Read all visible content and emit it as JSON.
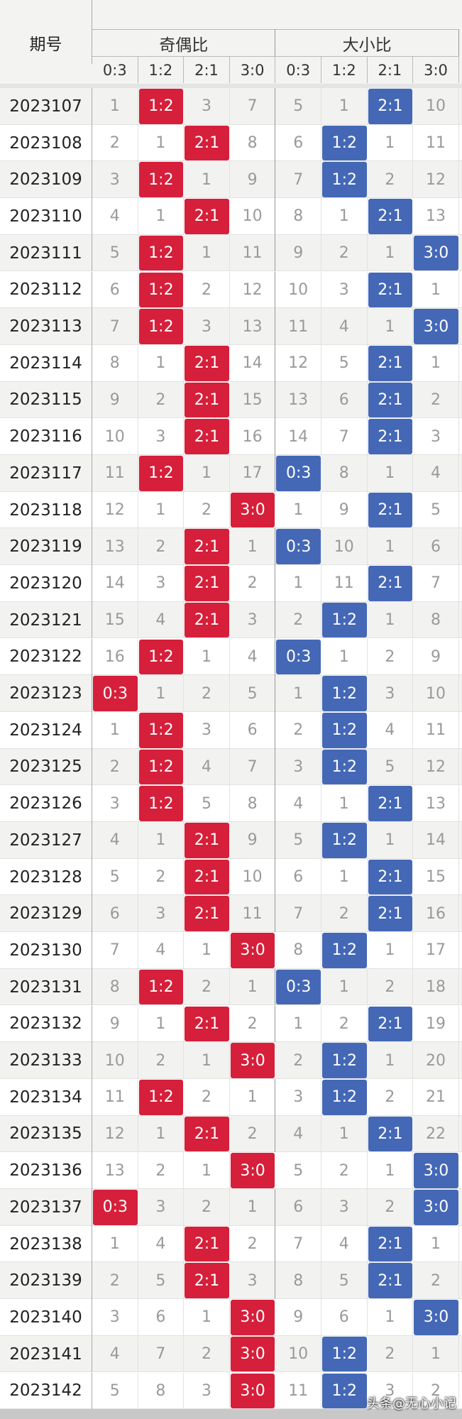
{
  "header": {
    "period_label": "期号",
    "groups": [
      {
        "title": "奇偶比",
        "columns": [
          "0:3",
          "1:2",
          "2:1",
          "3:0"
        ]
      },
      {
        "title": "大小比",
        "columns": [
          "0:3",
          "1:2",
          "2:1",
          "3:0"
        ]
      }
    ]
  },
  "rows": [
    {
      "period": "2023107",
      "cells": [
        1,
        "1:2",
        3,
        7,
        5,
        1,
        "2:1",
        10
      ]
    },
    {
      "period": "2023108",
      "cells": [
        2,
        1,
        "2:1",
        8,
        6,
        "1:2",
        1,
        11
      ]
    },
    {
      "period": "2023109",
      "cells": [
        3,
        "1:2",
        1,
        9,
        7,
        "1:2",
        2,
        12
      ]
    },
    {
      "period": "2023110",
      "cells": [
        4,
        1,
        "2:1",
        10,
        8,
        1,
        "2:1",
        13
      ]
    },
    {
      "period": "2023111",
      "cells": [
        5,
        "1:2",
        1,
        11,
        9,
        2,
        1,
        "3:0"
      ]
    },
    {
      "period": "2023112",
      "cells": [
        6,
        "1:2",
        2,
        12,
        10,
        3,
        "2:1",
        1
      ]
    },
    {
      "period": "2023113",
      "cells": [
        7,
        "1:2",
        3,
        13,
        11,
        4,
        1,
        "3:0"
      ]
    },
    {
      "period": "2023114",
      "cells": [
        8,
        1,
        "2:1",
        14,
        12,
        5,
        "2:1",
        1
      ]
    },
    {
      "period": "2023115",
      "cells": [
        9,
        2,
        "2:1",
        15,
        13,
        6,
        "2:1",
        2
      ]
    },
    {
      "period": "2023116",
      "cells": [
        10,
        3,
        "2:1",
        16,
        14,
        7,
        "2:1",
        3
      ]
    },
    {
      "period": "2023117",
      "cells": [
        11,
        "1:2",
        1,
        17,
        "0:3",
        8,
        1,
        4
      ]
    },
    {
      "period": "2023118",
      "cells": [
        12,
        1,
        2,
        "3:0",
        1,
        9,
        "2:1",
        5
      ]
    },
    {
      "period": "2023119",
      "cells": [
        13,
        2,
        "2:1",
        1,
        "0:3",
        10,
        1,
        6
      ]
    },
    {
      "period": "2023120",
      "cells": [
        14,
        3,
        "2:1",
        2,
        1,
        11,
        "2:1",
        7
      ]
    },
    {
      "period": "2023121",
      "cells": [
        15,
        4,
        "2:1",
        3,
        2,
        "1:2",
        1,
        8
      ]
    },
    {
      "period": "2023122",
      "cells": [
        16,
        "1:2",
        1,
        4,
        "0:3",
        1,
        2,
        9
      ]
    },
    {
      "period": "2023123",
      "cells": [
        "0:3",
        1,
        2,
        5,
        1,
        "1:2",
        3,
        10
      ]
    },
    {
      "period": "2023124",
      "cells": [
        1,
        "1:2",
        3,
        6,
        2,
        "1:2",
        4,
        11
      ]
    },
    {
      "period": "2023125",
      "cells": [
        2,
        "1:2",
        4,
        7,
        3,
        "1:2",
        5,
        12
      ]
    },
    {
      "period": "2023126",
      "cells": [
        3,
        "1:2",
        5,
        8,
        4,
        1,
        "2:1",
        13
      ]
    },
    {
      "period": "2023127",
      "cells": [
        4,
        1,
        "2:1",
        9,
        5,
        "1:2",
        1,
        14
      ]
    },
    {
      "period": "2023128",
      "cells": [
        5,
        2,
        "2:1",
        10,
        6,
        1,
        "2:1",
        15
      ]
    },
    {
      "period": "2023129",
      "cells": [
        6,
        3,
        "2:1",
        11,
        7,
        2,
        "2:1",
        16
      ]
    },
    {
      "period": "2023130",
      "cells": [
        7,
        4,
        1,
        "3:0",
        8,
        "1:2",
        1,
        17
      ]
    },
    {
      "period": "2023131",
      "cells": [
        8,
        "1:2",
        2,
        1,
        "0:3",
        1,
        2,
        18
      ]
    },
    {
      "period": "2023132",
      "cells": [
        9,
        1,
        "2:1",
        2,
        1,
        2,
        "2:1",
        19
      ]
    },
    {
      "period": "2023133",
      "cells": [
        10,
        2,
        1,
        "3:0",
        2,
        "1:2",
        1,
        20
      ]
    },
    {
      "period": "2023134",
      "cells": [
        11,
        "1:2",
        2,
        1,
        3,
        "1:2",
        2,
        21
      ]
    },
    {
      "period": "2023135",
      "cells": [
        12,
        1,
        "2:1",
        2,
        4,
        1,
        "2:1",
        22
      ]
    },
    {
      "period": "2023136",
      "cells": [
        13,
        2,
        1,
        "3:0",
        5,
        2,
        1,
        "3:0"
      ]
    },
    {
      "period": "2023137",
      "cells": [
        "0:3",
        3,
        2,
        1,
        6,
        3,
        2,
        "3:0"
      ]
    },
    {
      "period": "2023138",
      "cells": [
        1,
        4,
        "2:1",
        2,
        7,
        4,
        "2:1",
        1
      ]
    },
    {
      "period": "2023139",
      "cells": [
        2,
        5,
        "2:1",
        3,
        8,
        5,
        "2:1",
        2
      ]
    },
    {
      "period": "2023140",
      "cells": [
        3,
        6,
        1,
        "3:0",
        9,
        6,
        1,
        "3:0"
      ]
    },
    {
      "period": "2023141",
      "cells": [
        4,
        7,
        2,
        "3:0",
        10,
        "1:2",
        2,
        1
      ]
    },
    {
      "period": "2023142",
      "cells": [
        5,
        8,
        3,
        "3:0",
        11,
        "1:2",
        3,
        2
      ]
    }
  ],
  "watermark": "头条@无心小记"
}
